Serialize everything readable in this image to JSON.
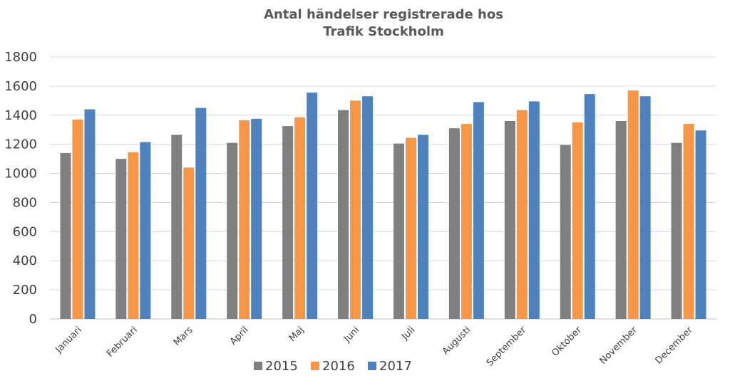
{
  "chart_data": {
    "type": "bar",
    "title_lines": [
      "Antal händelser registrerade hos",
      "Trafik Stockholm"
    ],
    "xlabel": "",
    "ylabel": "",
    "ylim": [
      0,
      1800
    ],
    "yticks": [
      0,
      200,
      400,
      600,
      800,
      1000,
      1200,
      1400,
      1600,
      1800
    ],
    "yticks_text": [
      "0",
      "200",
      "400",
      "600",
      "800",
      "1000",
      "1200",
      "1400",
      "1600",
      "1800"
    ],
    "grid": true,
    "legend_position": "bottom",
    "categories": [
      "Januari",
      "Februari",
      "Mars",
      "April",
      "Maj",
      "Juni",
      "Juli",
      "Augusti",
      "September",
      "Oktober",
      "November",
      "December"
    ],
    "series": [
      {
        "name": "2015",
        "color": "#7f7f7f",
        "values": [
          1140,
          1100,
          1265,
          1210,
          1325,
          1435,
          1205,
          1310,
          1360,
          1195,
          1360,
          1210
        ]
      },
      {
        "name": "2016",
        "color": "#f79646",
        "values": [
          1370,
          1145,
          1040,
          1365,
          1385,
          1500,
          1245,
          1340,
          1435,
          1350,
          1570,
          1340
        ]
      },
      {
        "name": "2017",
        "color": "#4f81bd",
        "values": [
          1440,
          1215,
          1450,
          1375,
          1555,
          1530,
          1265,
          1490,
          1495,
          1545,
          1530,
          1295
        ]
      }
    ]
  }
}
